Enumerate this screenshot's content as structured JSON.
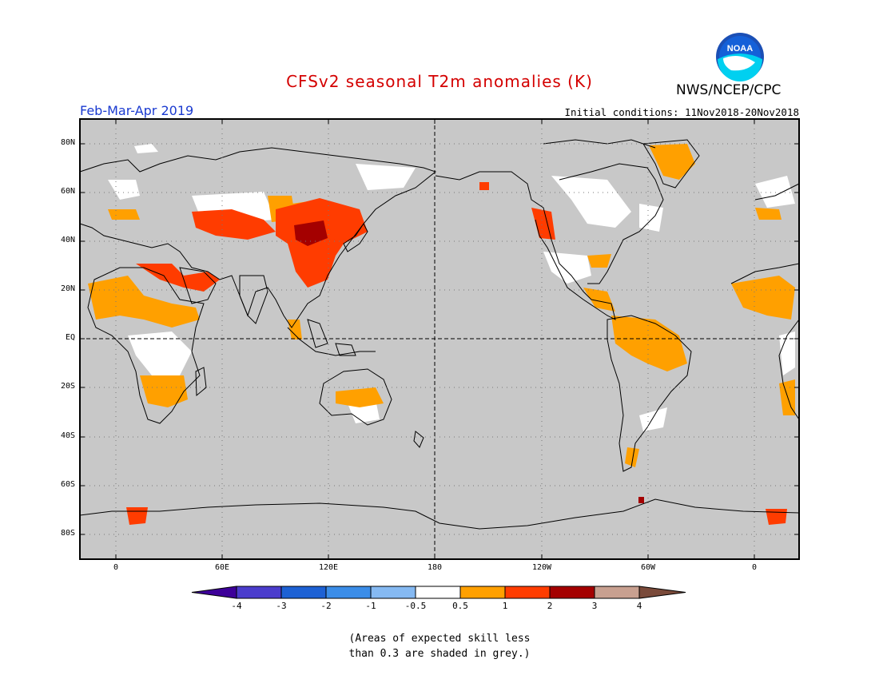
{
  "title": "CFSv2 seasonal T2m anomalies (K)",
  "agency": "NWS/NCEP/CPC",
  "period": "Feb-Mar-Apr 2019",
  "initial_conditions": "Initial conditions: 11Nov2018-20Nov2018",
  "logo_text": "NOAA",
  "lat_labels": [
    "80N",
    "60N",
    "40N",
    "20N",
    "EQ",
    "20S",
    "40S",
    "60S",
    "80S"
  ],
  "lon_labels": [
    "0",
    "60E",
    "120E",
    "180",
    "120W",
    "60W",
    "0"
  ],
  "colorbar": {
    "tick_labels": [
      "-4",
      "-3",
      "-2",
      "-1",
      "-0.5",
      "0.5",
      "1",
      "2",
      "3",
      "4"
    ],
    "colors": [
      "#3d0099",
      "#4b3ccc",
      "#1d61d4",
      "#3b8de8",
      "#85b9f2",
      "#ffffff",
      "#ffa000",
      "#ff3c00",
      "#a40000",
      "#c8a090",
      "#7a4a3a"
    ]
  },
  "note_line1": "(Areas of expected skill less",
  "note_line2": "than 0.3 are shaded in grey.)",
  "map_colors": {
    "grey": "#c8c8c8",
    "white": "#ffffff",
    "orange": "#ffa000",
    "red": "#ff3c00",
    "darkred": "#a40000"
  }
}
